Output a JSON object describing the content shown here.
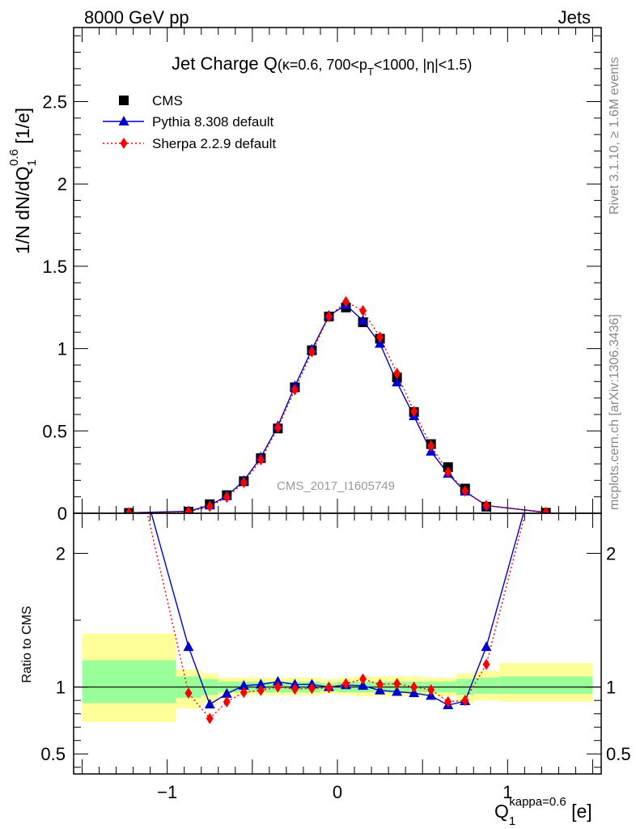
{
  "header": {
    "left": "8000 GeV pp",
    "right": "Jets"
  },
  "side_text": {
    "rivet": "Rivet 3.1.10, ≥ 1.6M events",
    "mcplots": "mcplots.cern.ch [arXiv:1306.3436]"
  },
  "watermark": "CMS_2017_I1605749",
  "title": {
    "main": "Jet Charge Q",
    "sub_a": "(κ=0.6, 700<p",
    "sub_sub": "T",
    "sub_b": "<1000, |η|<1.5)"
  },
  "ylabel_top": {
    "a": "1/N dN/dQ",
    "sub": "1",
    "sup": "0.6",
    "b": " [1/e]"
  },
  "ylabel_bottom": "Ratio to CMS",
  "xlabel": {
    "a": "Q",
    "sub": "1",
    "sup": "kappa=0.6",
    "b": " [e]"
  },
  "colors": {
    "cms": "#000000",
    "pythia": "#0000cc",
    "sherpa": "#ff0000",
    "band_yellow": "#ffff99",
    "band_green": "#99ff99"
  },
  "chart_data": {
    "type": "line",
    "xlim": [
      -1.55,
      1.55
    ],
    "top_panel": {
      "ylim": [
        0,
        2.95
      ],
      "y_ticks": [
        {
          "value": 0,
          "label": "0"
        },
        {
          "value": 0.5,
          "label": "0.5"
        },
        {
          "value": 1,
          "label": "1"
        },
        {
          "value": 1.5,
          "label": "1.5"
        },
        {
          "value": 2,
          "label": "2"
        },
        {
          "value": 2.5,
          "label": "2.5"
        }
      ]
    },
    "ratio_panel": {
      "ylim": [
        0.35,
        2.3
      ],
      "y_ticks": [
        {
          "value": 0.5,
          "label": "0.5"
        },
        {
          "value": 1,
          "label": "1"
        },
        {
          "value": 2,
          "label": "2"
        }
      ]
    },
    "x_ticks": [
      {
        "value": -1,
        "label": "−1"
      },
      {
        "value": 0,
        "label": "0"
      },
      {
        "value": 1,
        "label": "1"
      }
    ],
    "legend": [
      {
        "name": "CMS",
        "marker": "square"
      },
      {
        "name": "Pythia 8.308 default",
        "marker": "triangle"
      },
      {
        "name": "Sherpa 2.2.9 default",
        "marker": "diamond"
      }
    ],
    "x": [
      -1.225,
      -0.875,
      -0.75,
      -0.65,
      -0.55,
      -0.45,
      -0.35,
      -0.25,
      -0.15,
      -0.05,
      0.05,
      0.15,
      0.25,
      0.35,
      0.45,
      0.55,
      0.65,
      0.75,
      0.875,
      1.225
    ],
    "series": [
      {
        "name": "CMS",
        "values": [
          0.002,
          0.01,
          0.055,
          0.11,
          0.195,
          0.335,
          0.515,
          0.765,
          0.99,
          1.195,
          1.25,
          1.16,
          1.06,
          0.825,
          0.615,
          0.42,
          0.28,
          0.15,
          0.04,
          0.003
        ]
      },
      {
        "name": "Pythia 8.308 default",
        "values": [
          0.003,
          0.013,
          0.048,
          0.105,
          0.197,
          0.34,
          0.53,
          0.772,
          0.995,
          1.2,
          1.265,
          1.17,
          1.03,
          0.795,
          0.59,
          0.375,
          0.24,
          0.132,
          0.047,
          0.005
        ],
        "ratio": [
          2.9,
          1.3,
          0.87,
          0.95,
          1.01,
          1.02,
          1.04,
          1.02,
          1.02,
          1.0,
          1.015,
          1.01,
          0.975,
          0.965,
          0.955,
          0.935,
          0.865,
          0.895,
          1.3,
          2.9
        ]
      },
      {
        "name": "Sherpa 2.2.9 default",
        "values": [
          0.002,
          0.009,
          0.042,
          0.098,
          0.187,
          0.325,
          0.52,
          0.75,
          0.98,
          1.195,
          1.285,
          1.23,
          1.07,
          0.85,
          0.618,
          0.41,
          0.25,
          0.135,
          0.047,
          0.005
        ],
        "ratio": [
          2.9,
          0.955,
          0.765,
          0.89,
          0.96,
          0.975,
          1.0,
          0.985,
          0.99,
          0.995,
          1.025,
          1.06,
          1.02,
          1.025,
          1.0,
          0.98,
          0.89,
          0.9,
          1.17,
          2.9
        ]
      }
    ],
    "bands": [
      {
        "x": [
          -1.5,
          -0.95
        ],
        "yellow": [
          0.74,
          1.4
        ],
        "green": [
          0.88,
          1.2
        ]
      },
      {
        "x": [
          -0.95,
          -0.8
        ],
        "yellow": [
          0.84,
          1.13
        ],
        "green": [
          0.92,
          1.08
        ]
      },
      {
        "x": [
          -0.8,
          -0.7
        ],
        "yellow": [
          0.88,
          1.1
        ],
        "green": [
          0.94,
          1.06
        ]
      },
      {
        "x": [
          -0.7,
          -0.1
        ],
        "yellow": [
          0.94,
          1.07
        ],
        "green": [
          0.96,
          1.04
        ]
      },
      {
        "x": [
          -0.1,
          0.0
        ],
        "yellow": [
          0.95,
          1.06
        ],
        "green": [
          0.97,
          1.03
        ]
      },
      {
        "x": [
          0.0,
          0.1
        ],
        "yellow": [
          0.94,
          1.07
        ],
        "green": [
          0.96,
          1.04
        ]
      },
      {
        "x": [
          0.1,
          0.5
        ],
        "yellow": [
          0.93,
          1.08
        ],
        "green": [
          0.96,
          1.04
        ]
      },
      {
        "x": [
          0.5,
          0.7
        ],
        "yellow": [
          0.93,
          1.07
        ],
        "green": [
          0.96,
          1.04
        ]
      },
      {
        "x": [
          0.7,
          0.8
        ],
        "yellow": [
          0.88,
          1.1
        ],
        "green": [
          0.94,
          1.06
        ]
      },
      {
        "x": [
          0.8,
          0.95
        ],
        "yellow": [
          0.9,
          1.12
        ],
        "green": [
          0.95,
          1.07
        ]
      },
      {
        "x": [
          0.95,
          1.5
        ],
        "yellow": [
          0.89,
          1.18
        ],
        "green": [
          0.95,
          1.08
        ]
      }
    ]
  }
}
